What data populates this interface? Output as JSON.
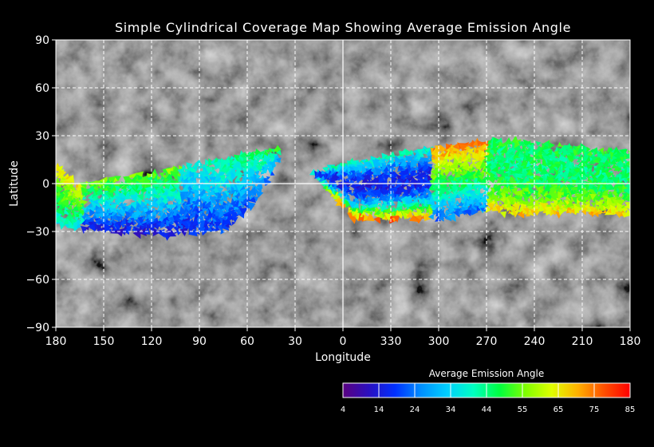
{
  "map": {
    "title": "Simple Cylindrical Coverage Map Showing Average Emission Angle",
    "xlabel": "Longitude",
    "ylabel": "Latitude",
    "projection": "simple-cylindrical",
    "grid": "dashed-white",
    "lat_ticks": [
      "90",
      "60",
      "30",
      "0",
      "−30",
      "−60",
      "−90"
    ],
    "lon_ticks": [
      "180",
      "150",
      "120",
      "90",
      "60",
      "30",
      "0",
      "330",
      "300",
      "270",
      "240",
      "210",
      "180"
    ],
    "lat_range": [
      -90,
      90
    ],
    "basemap": "grayscale-surface-mosaic"
  },
  "colorbar": {
    "title": "Average Emission Angle",
    "tick_labels": [
      "4",
      "14",
      "24",
      "34",
      "44",
      "55",
      "65",
      "75",
      "85"
    ],
    "range": [
      4,
      85
    ],
    "colors": [
      "#5a0080",
      "#2a10c0",
      "#0030ff",
      "#0090ff",
      "#00d0ff",
      "#00ffc0",
      "#00ff40",
      "#80ff00",
      "#e0ff00",
      "#ffb000",
      "#ff5000",
      "#ff0000"
    ]
  },
  "coverage": [
    {
      "region": "west-band",
      "lon_range": [
        180,
        40
      ],
      "lat_range": [
        -33,
        20
      ]
    },
    {
      "region": "east-band",
      "lon_range": [
        25,
        180
      ],
      "lat_range": [
        -28,
        27
      ]
    }
  ]
}
